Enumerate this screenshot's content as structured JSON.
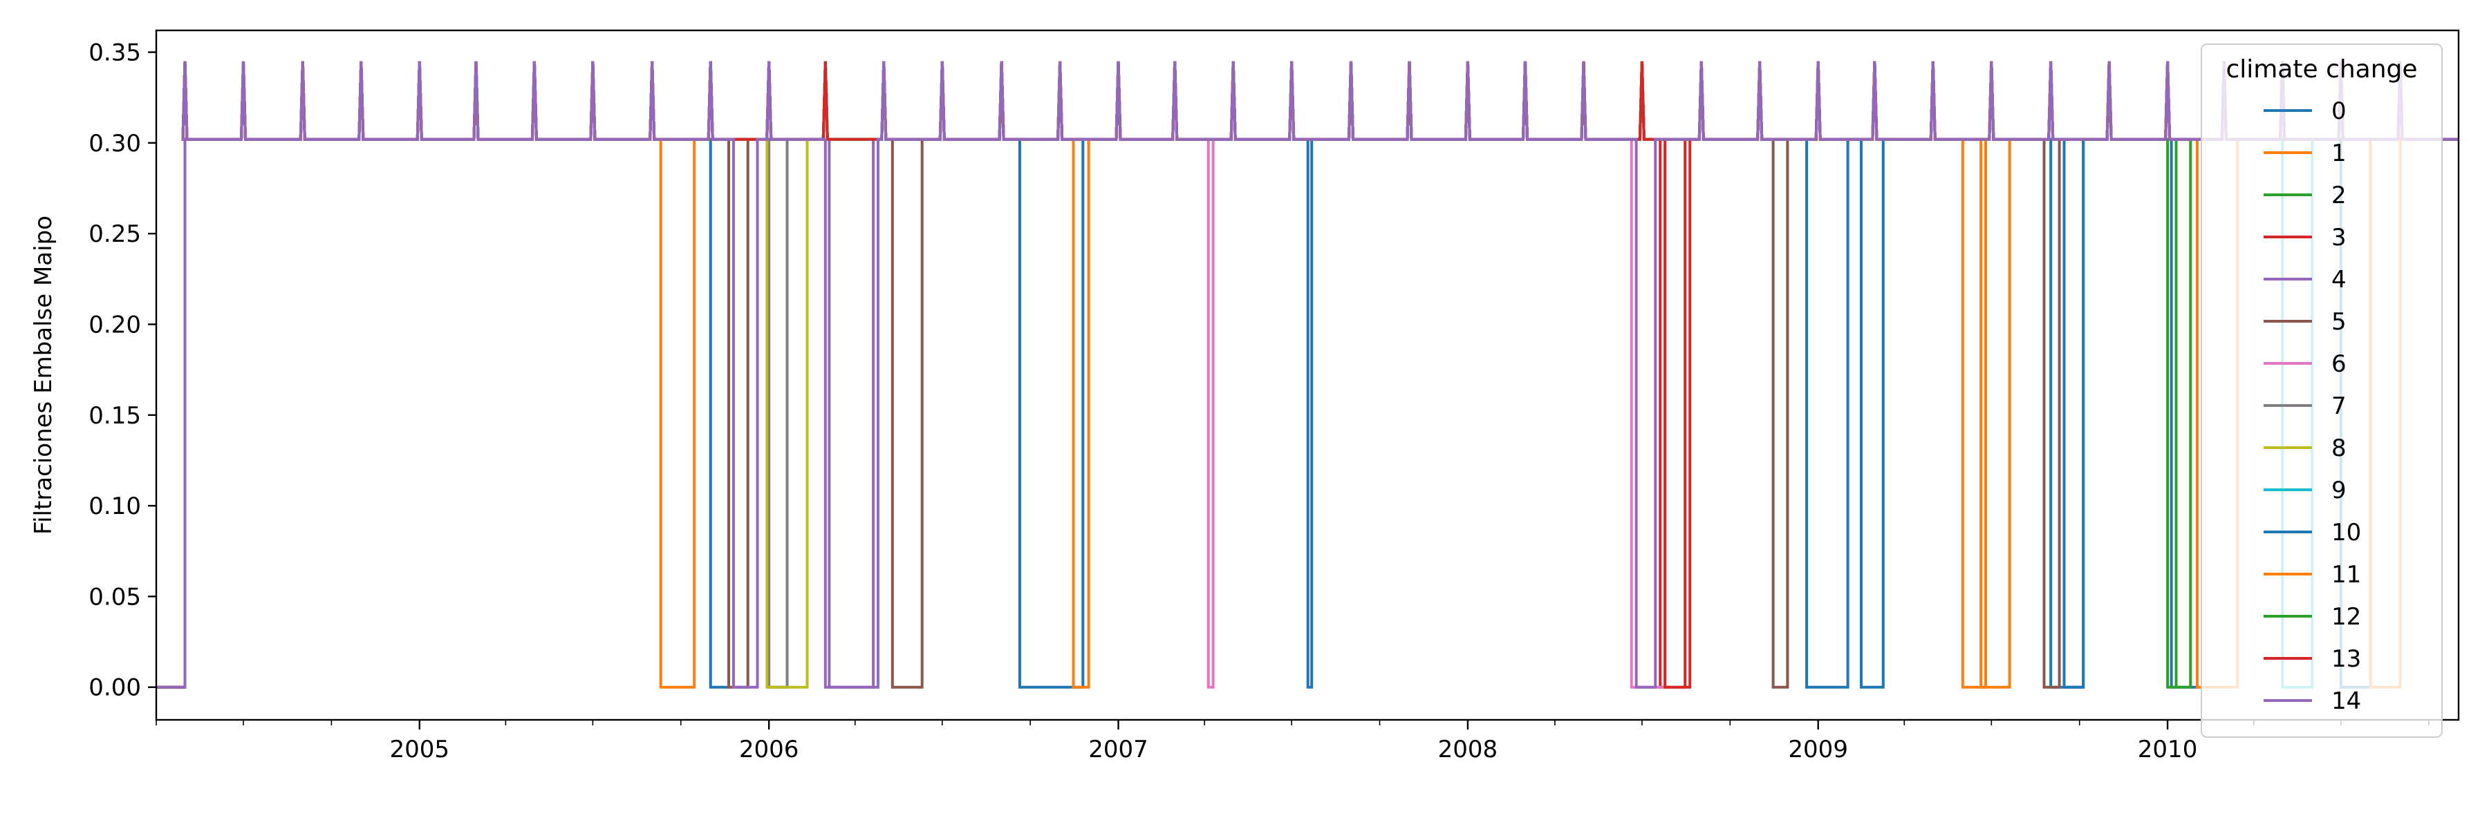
{
  "chart_data": {
    "type": "line",
    "step": true,
    "xlabel": "",
    "ylabel": "Filtraciones Embalse Maipo",
    "xlim": [
      "2004-04-01",
      "2010-11-01"
    ],
    "ylim": [
      -0.018,
      0.362
    ],
    "x_ticks": [
      "2005",
      "2006",
      "2007",
      "2008",
      "2009",
      "2010"
    ],
    "y_ticks": [
      "0.00",
      "0.05",
      "0.10",
      "0.15",
      "0.20",
      "0.25",
      "0.30",
      "0.35"
    ],
    "grid": false,
    "legend": {
      "title": "climate change",
      "placement": "upper-right"
    },
    "baseline_value": 0.302,
    "peak_value": 0.345,
    "start_value": 0.0,
    "rise_date": "2004-05-01",
    "peak_dates": [
      "2004-05",
      "2004-07",
      "2004-09",
      "2004-11",
      "2005-01",
      "2005-03",
      "2005-05",
      "2005-07",
      "2005-09",
      "2005-11",
      "2006-01",
      "2006-03",
      "2006-05",
      "2006-07",
      "2006-09",
      "2006-11",
      "2007-01",
      "2007-03",
      "2007-05",
      "2007-07",
      "2007-09",
      "2007-11",
      "2008-01",
      "2008-03",
      "2008-05",
      "2008-07",
      "2008-09",
      "2008-11",
      "2009-01",
      "2009-03",
      "2009-05",
      "2009-07",
      "2009-09",
      "2009-11",
      "2010-01",
      "2010-03",
      "2010-05",
      "2010-07",
      "2010-09"
    ],
    "series": [
      {
        "name": "0",
        "color": "#1f77b4",
        "zero_intervals": [
          [
            "2005-11-01",
            "2005-11-20"
          ],
          [
            "2006-09-20",
            "2006-11-25"
          ],
          [
            "2008-12-20",
            "2009-02-01"
          ],
          [
            "2009-09-01",
            "2009-10-05"
          ],
          [
            "2010-01-05",
            "2010-02-01"
          ]
        ]
      },
      {
        "name": "1",
        "color": "#ff7f0e",
        "zero_intervals": [
          [
            "2005-09-10",
            "2005-10-15"
          ],
          [
            "2009-06-20",
            "2009-07-20"
          ],
          [
            "2010-02-01",
            "2010-03-15"
          ]
        ]
      },
      {
        "name": "2",
        "color": "#2ca02c",
        "zero_intervals": [
          [
            "2010-01-10",
            "2010-01-25"
          ]
        ]
      },
      {
        "name": "3",
        "color": "#d62728",
        "zero_intervals": [
          [
            "2008-07-20",
            "2008-08-15"
          ]
        ]
      },
      {
        "name": "4",
        "color": "#9467bd",
        "zero_intervals": [
          [
            "2006-03-05",
            "2006-04-20"
          ]
        ]
      },
      {
        "name": "5",
        "color": "#8c564b",
        "zero_intervals": [
          [
            "2005-11-20",
            "2005-12-10"
          ],
          [
            "2006-05-10",
            "2006-06-10"
          ],
          [
            "2008-11-15",
            "2008-11-30"
          ],
          [
            "2009-08-25",
            "2009-09-10"
          ]
        ]
      },
      {
        "name": "6",
        "color": "#e377c2",
        "zero_intervals": [
          [
            "2007-04-05",
            "2007-04-10"
          ],
          [
            "2008-06-20",
            "2008-07-25"
          ]
        ]
      },
      {
        "name": "7",
        "color": "#7f7f7f",
        "zero_intervals": [
          [
            "2006-01-01",
            "2006-01-20"
          ]
        ]
      },
      {
        "name": "8",
        "color": "#bcbd22",
        "zero_intervals": [
          [
            "2005-12-30",
            "2006-02-10"
          ]
        ]
      },
      {
        "name": "9",
        "color": "#17becf",
        "zero_intervals": [
          [
            "2010-05-01",
            "2010-06-01"
          ]
        ]
      },
      {
        "name": "10",
        "color": "#1f77b4",
        "zero_intervals": [
          [
            "2007-07-18",
            "2007-07-22"
          ],
          [
            "2009-02-15",
            "2009-03-10"
          ],
          [
            "2009-09-15",
            "2009-10-05"
          ],
          [
            "2010-07-01",
            "2010-08-01"
          ]
        ]
      },
      {
        "name": "11",
        "color": "#ff7f0e",
        "zero_intervals": [
          [
            "2006-11-15",
            "2006-12-01"
          ],
          [
            "2009-06-01",
            "2009-06-25"
          ],
          [
            "2010-08-01",
            "2010-09-01"
          ]
        ]
      },
      {
        "name": "12",
        "color": "#2ca02c",
        "zero_intervals": [
          [
            "2010-01-01",
            "2010-01-10"
          ]
        ]
      },
      {
        "name": "13",
        "color": "#d62728",
        "zero_intervals": [
          [
            "2008-07-25",
            "2008-08-20"
          ]
        ]
      },
      {
        "name": "14",
        "color": "#9467bd",
        "zero_intervals": [
          [
            "2005-11-25",
            "2005-12-20"
          ],
          [
            "2006-03-01",
            "2006-04-25"
          ],
          [
            "2008-06-25",
            "2008-07-15"
          ]
        ]
      }
    ]
  }
}
